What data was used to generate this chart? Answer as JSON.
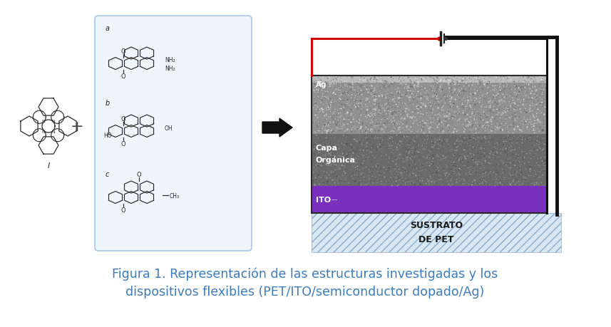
{
  "caption_line1": "Figura 1. Representación de las estructuras investigadas y los",
  "caption_line2": "dispositivos flexibles (PET/ITO/semiconductor dopado/Ag)",
  "caption_color": "#3a7bbf",
  "caption_fontsize": 12.5,
  "bg_color": "#ffffff",
  "fig_width": 8.57,
  "fig_height": 4.6,
  "panel_bg": "#eef5fc",
  "panel_border": "#a8c8e8",
  "layer_ito_color": "#7b2fbe",
  "circuit_red": "#cc0000",
  "circuit_black": "#111111",
  "label_ag": "Ag",
  "label_capa": "Capa",
  "label_organica": "Orgánica",
  "label_ito": "ITO",
  "label_sustrato": "SUSTRATO",
  "label_depet": "DE PET"
}
